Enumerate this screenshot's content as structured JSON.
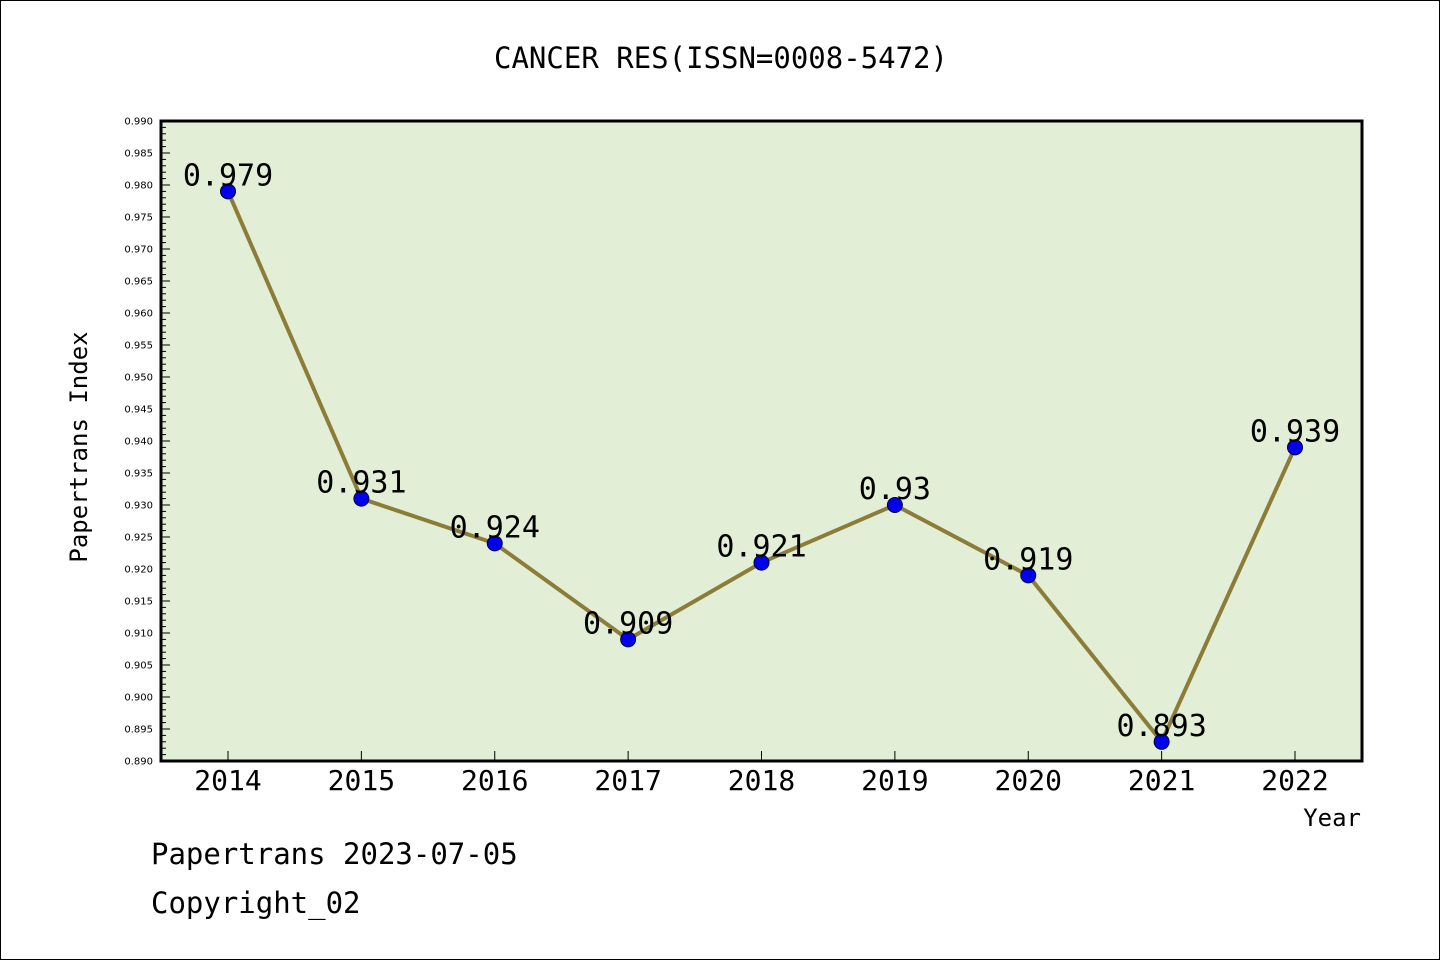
{
  "chart_data": {
    "type": "line",
    "title": "CANCER RES(ISSN=0008-5472)",
    "xlabel": "Year",
    "ylabel": "Papertrans Index",
    "categories": [
      "2014",
      "2015",
      "2016",
      "2017",
      "2018",
      "2019",
      "2020",
      "2021",
      "2022"
    ],
    "values": [
      0.979,
      0.931,
      0.924,
      0.909,
      0.921,
      0.93,
      0.919,
      0.893,
      0.939
    ],
    "data_labels": [
      "0.979",
      "0.931",
      "0.924",
      "0.909",
      "0.921",
      "0.93",
      "0.919",
      "0.893",
      "0.939"
    ],
    "ylim": [
      0.89,
      0.99
    ],
    "yticks": [
      "0.890",
      "0.895",
      "0.900",
      "0.905",
      "0.910",
      "0.915",
      "0.920",
      "0.925",
      "0.930",
      "0.935",
      "0.940",
      "0.945",
      "0.950",
      "0.955",
      "0.960",
      "0.965",
      "0.970",
      "0.975",
      "0.980",
      "0.985",
      "0.990"
    ],
    "grid": false,
    "legend": "none",
    "colors": {
      "plot_background": "#e2efd6",
      "line": "#8b7d37",
      "marker": "#0000ee",
      "marker_edge": "#000033"
    }
  },
  "footer": {
    "date_line": "Papertrans 2023-07-05",
    "copyright": "Copyright_02"
  }
}
